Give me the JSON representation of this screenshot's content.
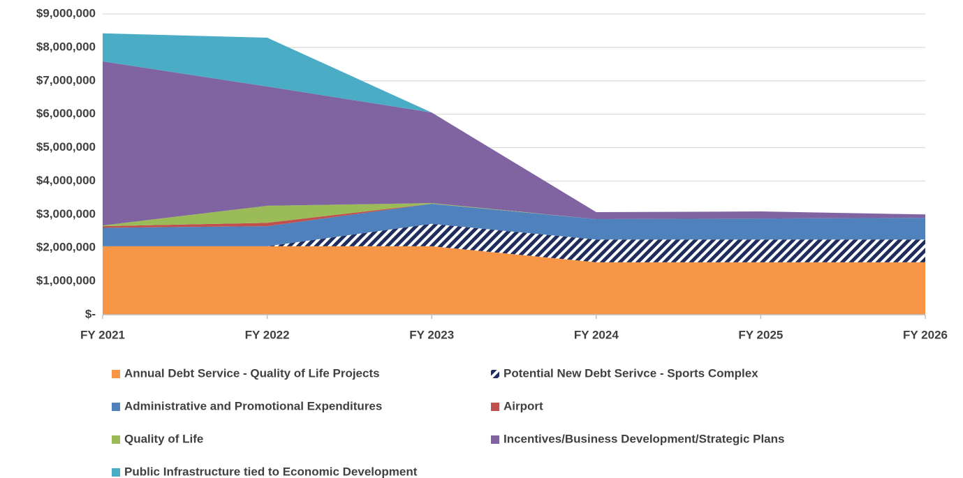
{
  "chart_data": {
    "type": "stacked_area",
    "categories": [
      "FY 2021",
      "FY 2022",
      "FY 2023",
      "FY 2024",
      "FY 2025",
      "FY 2026"
    ],
    "series": [
      {
        "name": "Annual Debt Service - Quality of Life Projects",
        "color": "#f79646",
        "values": [
          2050000,
          2050000,
          2050000,
          1570000,
          1570000,
          1570000
        ]
      },
      {
        "name": "Potential New Debt Serivce - Sports Complex",
        "color": "#1f2d5c",
        "hatch": true,
        "values": [
          0,
          0,
          670000,
          680000,
          680000,
          680000
        ]
      },
      {
        "name": "Administrative and Promotional Expenditures",
        "color": "#4f81bd",
        "values": [
          550000,
          600000,
          600000,
          610000,
          630000,
          650000
        ]
      },
      {
        "name": "Airport",
        "color": "#c0504d",
        "values": [
          50000,
          100000,
          0,
          0,
          0,
          0
        ]
      },
      {
        "name": "Quality of Life",
        "color": "#9bbb59",
        "values": [
          20000,
          510000,
          20000,
          0,
          0,
          0
        ]
      },
      {
        "name": "Incentives/Business Development/Strategic Plans",
        "color": "#8064a2",
        "values": [
          4910000,
          3570000,
          2710000,
          210000,
          210000,
          100000
        ]
      },
      {
        "name": "Public Infrastructure tied to Economic Development",
        "color": "#4bacc6",
        "values": [
          840000,
          1460000,
          0,
          0,
          0,
          0
        ]
      }
    ],
    "ylim": [
      0,
      9000000
    ],
    "yticks": [
      {
        "value": 0,
        "label": "$-"
      },
      {
        "value": 1000000,
        "label": "$1,000,000"
      },
      {
        "value": 2000000,
        "label": "$2,000,000"
      },
      {
        "value": 3000000,
        "label": "$3,000,000"
      },
      {
        "value": 4000000,
        "label": "$4,000,000"
      },
      {
        "value": 5000000,
        "label": "$5,000,000"
      },
      {
        "value": 6000000,
        "label": "$6,000,000"
      },
      {
        "value": 7000000,
        "label": "$7,000,000"
      },
      {
        "value": 8000000,
        "label": "$8,000,000"
      },
      {
        "value": 9000000,
        "label": "$9,000,000"
      }
    ],
    "grid": true
  }
}
